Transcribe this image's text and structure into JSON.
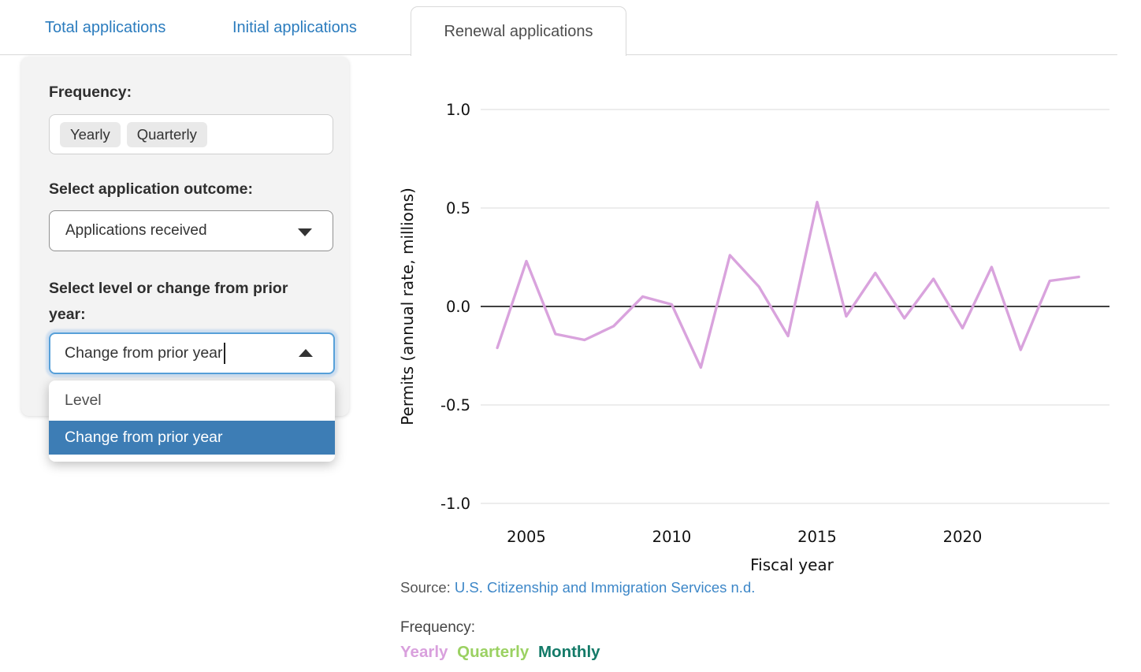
{
  "tabs": [
    {
      "label": "Total applications",
      "active": false
    },
    {
      "label": "Initial applications",
      "active": false
    },
    {
      "label": "Renewal applications",
      "active": true
    }
  ],
  "sidebar": {
    "frequency_label": "Frequency:",
    "frequency_options": [
      "Yearly",
      "Quarterly"
    ],
    "outcome_label": "Select application outcome:",
    "outcome_value": "Applications received",
    "level_label": "Select level or change from prior year:",
    "level_value": "Change from prior year",
    "dropdown_options": [
      {
        "label": "Level",
        "selected": false
      },
      {
        "label": "Change from prior year",
        "selected": true
      }
    ],
    "dropdown_highlight_color": "#3d7db5"
  },
  "chart_data": {
    "type": "line",
    "title": "",
    "xlabel": "Fiscal year",
    "ylabel": "Permits (annual rate, millions)",
    "x": [
      2004,
      2005,
      2006,
      2007,
      2008,
      2009,
      2010,
      2011,
      2012,
      2013,
      2014,
      2015,
      2016,
      2017,
      2018,
      2019,
      2020,
      2021,
      2022,
      2023,
      2024
    ],
    "values": [
      -0.21,
      0.23,
      -0.14,
      -0.17,
      -0.1,
      0.05,
      0.01,
      -0.31,
      0.26,
      0.1,
      -0.15,
      0.53,
      -0.05,
      0.17,
      -0.06,
      0.14,
      -0.11,
      0.2,
      -0.22,
      0.13,
      0.15
    ],
    "series_name": "Yearly change from prior year",
    "ylim": [
      -1.0,
      1.0
    ],
    "yticks": [
      1.0,
      0.5,
      0.0,
      -0.5,
      -1.0
    ],
    "xticks": [
      2005,
      2010,
      2015,
      2020
    ],
    "grid": true,
    "zero_line": true,
    "legend_position": "none",
    "line_color": "#d9a3dd",
    "grid_color": "#e7e7e7",
    "zero_line_color": "#000000"
  },
  "source": {
    "prefix": "Source: ",
    "link": "U.S. Citizenship and Immigration Services n.d."
  },
  "legend": {
    "label": "Frequency:",
    "items": [
      {
        "label": "Yearly",
        "color": "#d9a0dd"
      },
      {
        "label": "Quarterly",
        "color": "#9bd162"
      },
      {
        "label": "Monthly",
        "color": "#137a68"
      }
    ]
  }
}
